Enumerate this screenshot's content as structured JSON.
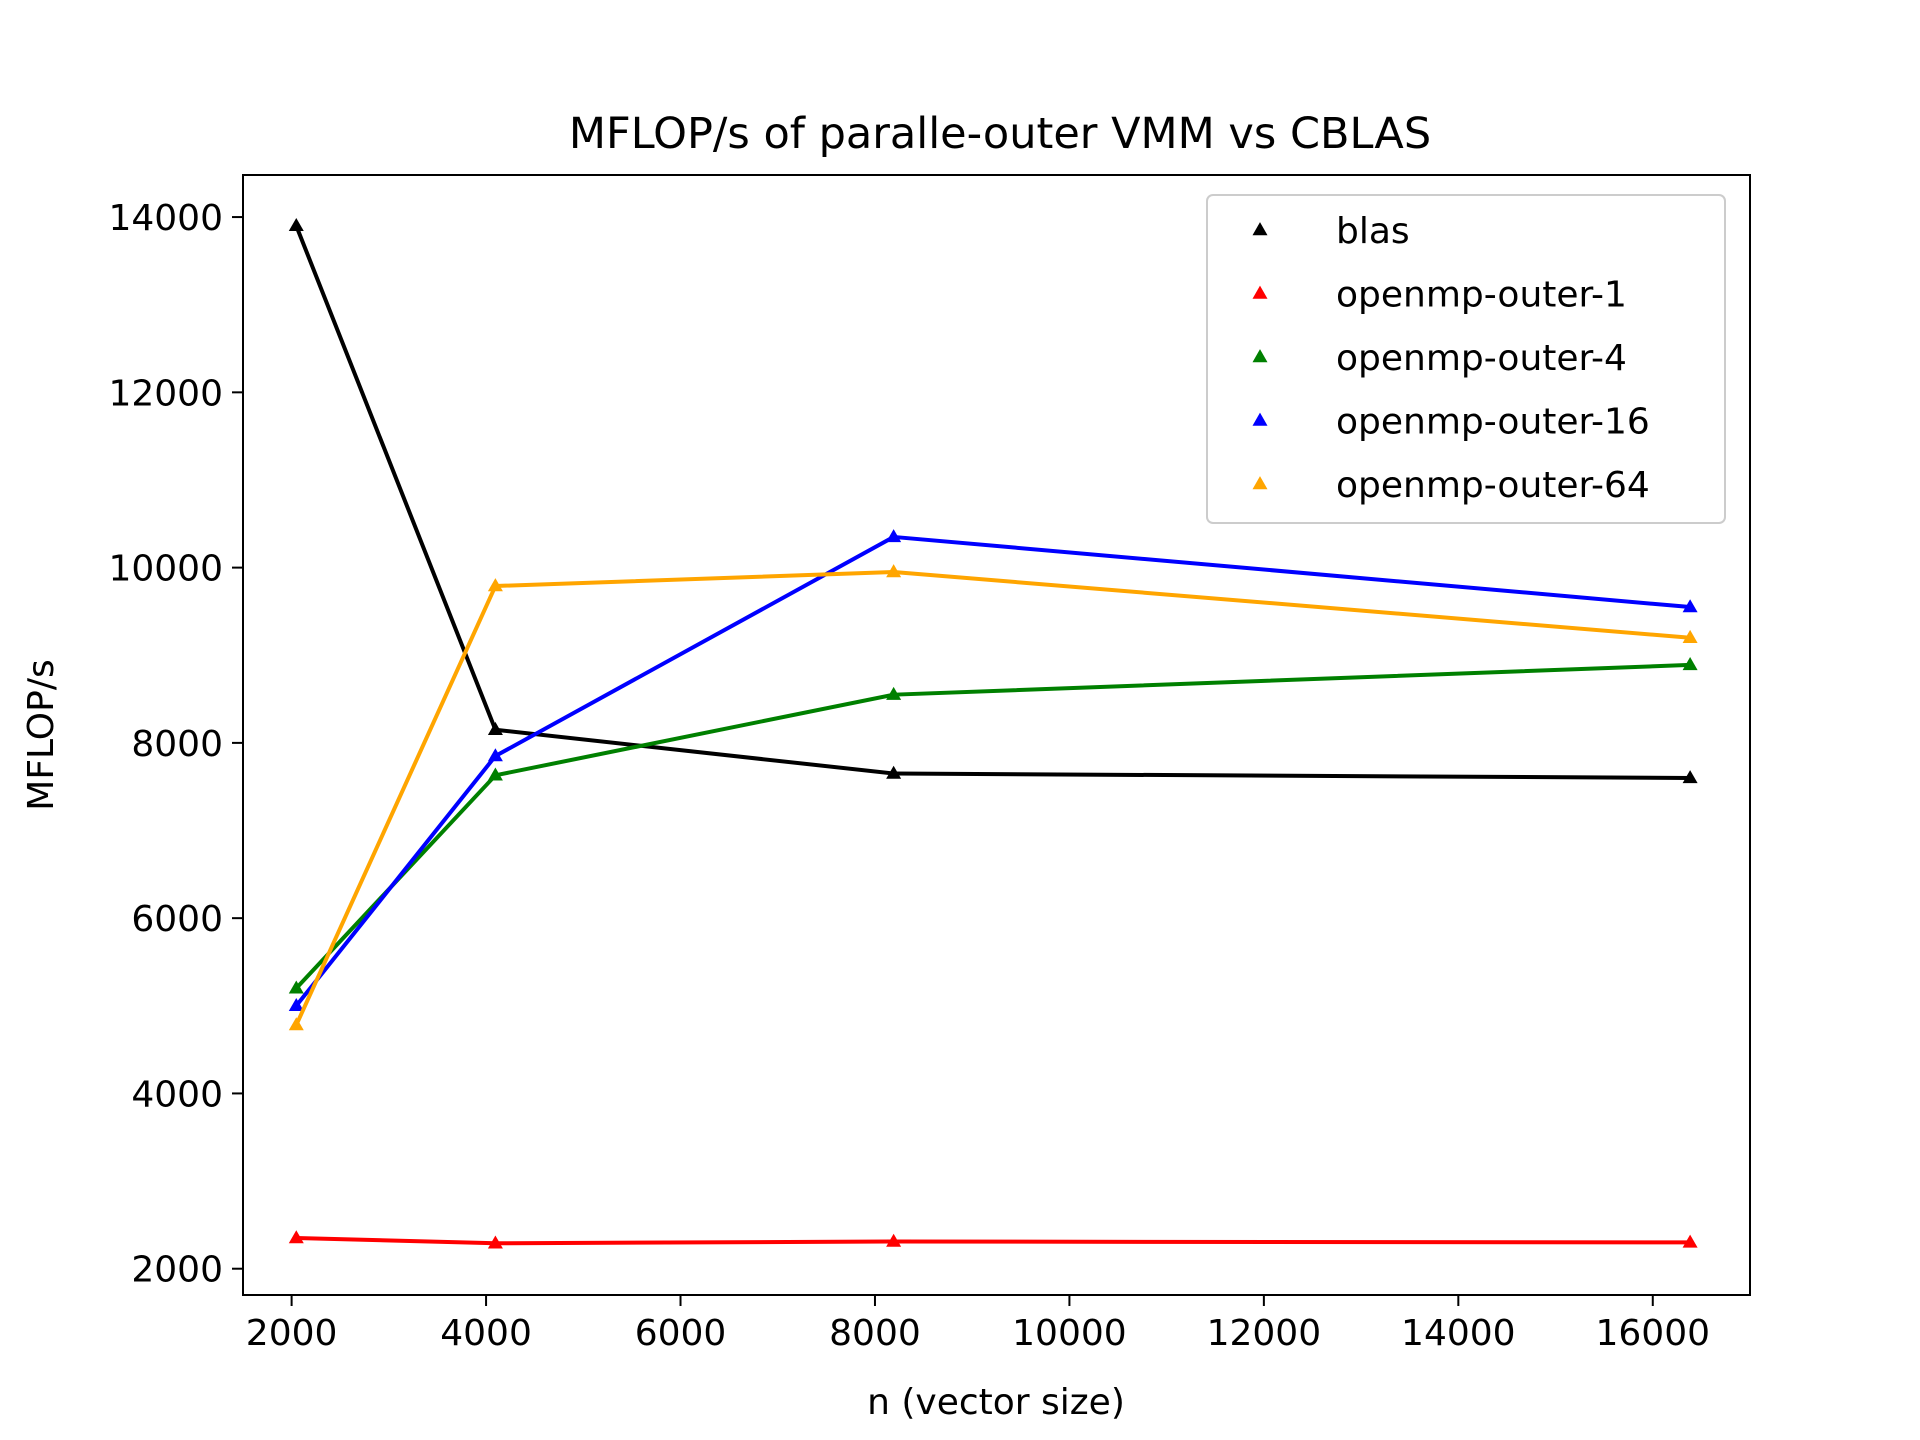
{
  "chart_data": {
    "type": "line",
    "title": "MFLOP/s of paralle-outer VMM vs CBLAS",
    "xlabel": "n (vector size)",
    "ylabel": "MFLOP/s",
    "xlim": [
      1500,
      17000
    ],
    "ylim": [
      1700,
      14480
    ],
    "xticks": [
      2000,
      4000,
      6000,
      8000,
      10000,
      12000,
      14000,
      16000
    ],
    "yticks": [
      2000,
      4000,
      6000,
      8000,
      10000,
      12000,
      14000
    ],
    "grid": false,
    "legend": "top-right",
    "marker": "triangle",
    "x": [
      2048,
      4096,
      8192,
      16384
    ],
    "series": [
      {
        "name": "blas",
        "color": "#000000",
        "values": [
          13900,
          8150,
          7650,
          7600
        ]
      },
      {
        "name": "openmp-outer-1",
        "color": "#ff0000",
        "values": [
          2350,
          2290,
          2310,
          2300
        ]
      },
      {
        "name": "openmp-outer-4",
        "color": "#008000",
        "values": [
          5200,
          7630,
          8550,
          8890
        ]
      },
      {
        "name": "openmp-outer-16",
        "color": "#0000ff",
        "values": [
          5000,
          7850,
          10350,
          9550
        ]
      },
      {
        "name": "openmp-outer-64",
        "color": "#ffa500",
        "values": [
          4780,
          9790,
          9950,
          9200
        ]
      }
    ]
  }
}
